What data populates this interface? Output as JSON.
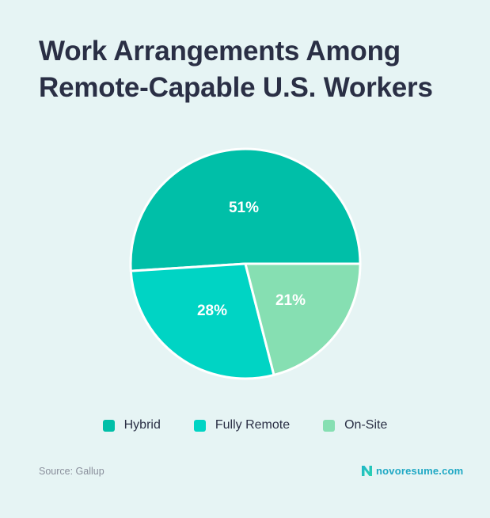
{
  "title": {
    "line1": "Work Arrangements Among",
    "line2": "Remote-Capable U.S. Workers"
  },
  "legend": [
    {
      "label": "Hybrid",
      "color": "#00bfa8"
    },
    {
      "label": "Fully Remote",
      "color": "#00d4c4"
    },
    {
      "label": "On-Site",
      "color": "#86dfb2"
    }
  ],
  "slice_labels": [
    "51%",
    "28%",
    "21%"
  ],
  "footer": {
    "source": "Source: Gallup",
    "brand": "novoresume.com"
  },
  "colors": {
    "background": "#e6f4f4",
    "title": "#2a2f45",
    "brand": "#1fa8c4"
  },
  "chart_data": {
    "type": "pie",
    "title": "Work Arrangements Among Remote-Capable U.S. Workers",
    "categories": [
      "Hybrid",
      "Fully Remote",
      "On-Site"
    ],
    "values": [
      51,
      28,
      21
    ],
    "unit": "%",
    "colors": [
      "#00bfa8",
      "#00d4c4",
      "#86dfb2"
    ],
    "start_angle_deg": 0,
    "direction": "counterclockwise",
    "legend_position": "bottom",
    "source": "Gallup"
  }
}
